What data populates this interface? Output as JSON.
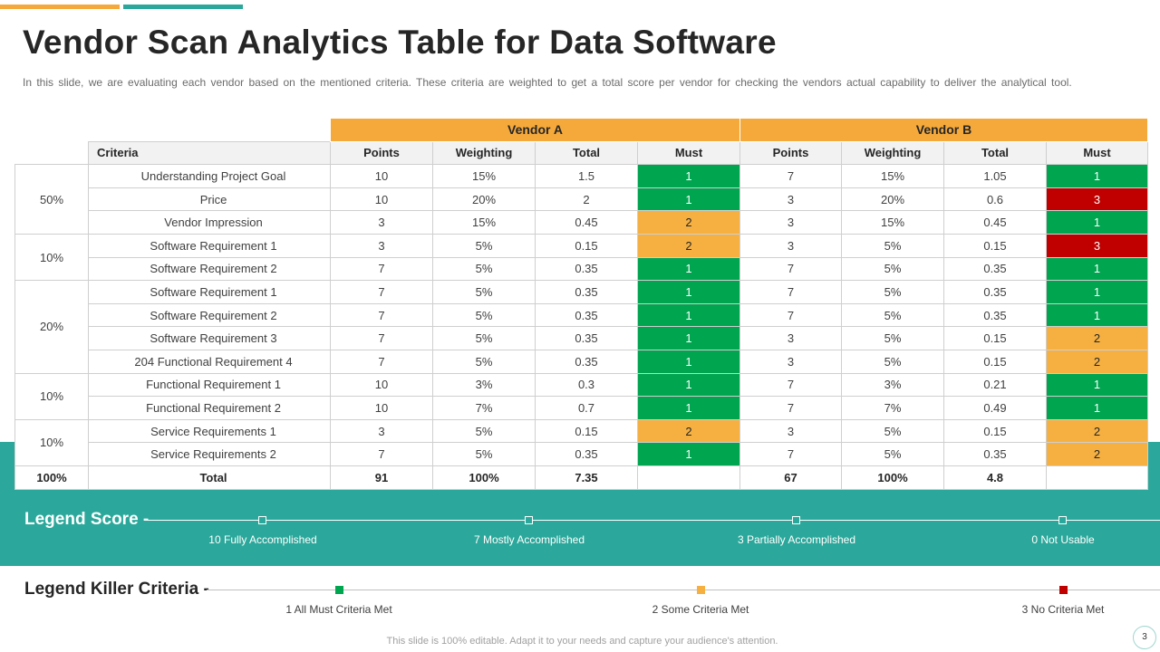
{
  "title": "Vendor Scan Analytics Table for Data Software",
  "subtitle": "In this slide, we are evaluating  each vendor  based on the mentioned criteria. These  criteria are weighted  to get a total score  per vendor  for checking the vendors  actual capability to deliver  the analytical tool.",
  "table": {
    "vendors": [
      "Vendor A",
      "Vendor B"
    ],
    "criteria_header": "Criteria",
    "columns": [
      "Points",
      "Weighting",
      "Total",
      "Must"
    ],
    "groups": [
      {
        "weight": "50%",
        "rows": [
          {
            "criteria": "Understanding  Project Goal",
            "a": [
              "10",
              "15%",
              "1.5",
              "1"
            ],
            "b": [
              "7",
              "15%",
              "1.05",
              "1"
            ]
          },
          {
            "criteria": "Price",
            "a": [
              "10",
              "20%",
              "2",
              "1"
            ],
            "b": [
              "3",
              "20%",
              "0.6",
              "3"
            ]
          },
          {
            "criteria": "Vendor Impression",
            "a": [
              "3",
              "15%",
              "0.45",
              "2"
            ],
            "b": [
              "3",
              "15%",
              "0.45",
              "1"
            ]
          }
        ]
      },
      {
        "weight": "10%",
        "rows": [
          {
            "criteria": "Software Requirement  1",
            "a": [
              "3",
              "5%",
              "0.15",
              "2"
            ],
            "b": [
              "3",
              "5%",
              "0.15",
              "3"
            ]
          },
          {
            "criteria": "Software Requirement  2",
            "a": [
              "7",
              "5%",
              "0.35",
              "1"
            ],
            "b": [
              "7",
              "5%",
              "0.35",
              "1"
            ]
          }
        ]
      },
      {
        "weight": "20%",
        "rows": [
          {
            "criteria": "Software Requirement  1",
            "a": [
              "7",
              "5%",
              "0.35",
              "1"
            ],
            "b": [
              "7",
              "5%",
              "0.35",
              "1"
            ]
          },
          {
            "criteria": "Software Requirement  2",
            "a": [
              "7",
              "5%",
              "0.35",
              "1"
            ],
            "b": [
              "7",
              "5%",
              "0.35",
              "1"
            ]
          },
          {
            "criteria": "Software Requirement  3",
            "a": [
              "7",
              "5%",
              "0.35",
              "1"
            ],
            "b": [
              "3",
              "5%",
              "0.15",
              "2"
            ]
          },
          {
            "criteria": "204 Functional Requirement  4",
            "a": [
              "7",
              "5%",
              "0.35",
              "1"
            ],
            "b": [
              "3",
              "5%",
              "0.15",
              "2"
            ]
          }
        ]
      },
      {
        "weight": "10%",
        "rows": [
          {
            "criteria": "Functional Requirement  1",
            "a": [
              "10",
              "3%",
              "0.3",
              "1"
            ],
            "b": [
              "7",
              "3%",
              "0.21",
              "1"
            ]
          },
          {
            "criteria": "Functional Requirement  2",
            "a": [
              "10",
              "7%",
              "0.7",
              "1"
            ],
            "b": [
              "7",
              "7%",
              "0.49",
              "1"
            ]
          }
        ]
      },
      {
        "weight": "10%",
        "rows": [
          {
            "criteria": "Service Requirements  1",
            "a": [
              "3",
              "5%",
              "0.15",
              "2"
            ],
            "b": [
              "3",
              "5%",
              "0.15",
              "2"
            ]
          },
          {
            "criteria": "Service Requirements  2",
            "a": [
              "7",
              "5%",
              "0.35",
              "1"
            ],
            "b": [
              "7",
              "5%",
              "0.35",
              "2"
            ]
          }
        ]
      }
    ],
    "total": {
      "weight": "100%",
      "label": "Total",
      "a": [
        "91",
        "100%",
        "7.35",
        ""
      ],
      "b": [
        "67",
        "100%",
        "4.8",
        ""
      ]
    },
    "must_colors": {
      "1": "#00A550",
      "2": "#F5B041",
      "3": "#C00000"
    }
  },
  "legend_score": {
    "title": "Legend Score -",
    "items": [
      "10 Fully Accomplished",
      "7 Mostly Accomplished",
      "3 Partially Accomplished",
      "0 Not Usable"
    ]
  },
  "legend_killer": {
    "title": "Legend Killer Criteria -",
    "items": [
      {
        "label": "1 All Must Criteria Met",
        "color": "#00A550"
      },
      {
        "label": "2 Some Criteria Met",
        "color": "#F5B041"
      },
      {
        "label": "3 No Criteria Met",
        "color": "#C00000"
      }
    ]
  },
  "footer": "This slide is 100% editable. Adapt it to your needs and capture your audience's attention.",
  "page_number": "3",
  "colors": {
    "accent_orange": "#F5A93B",
    "accent_teal": "#2BA89B"
  }
}
